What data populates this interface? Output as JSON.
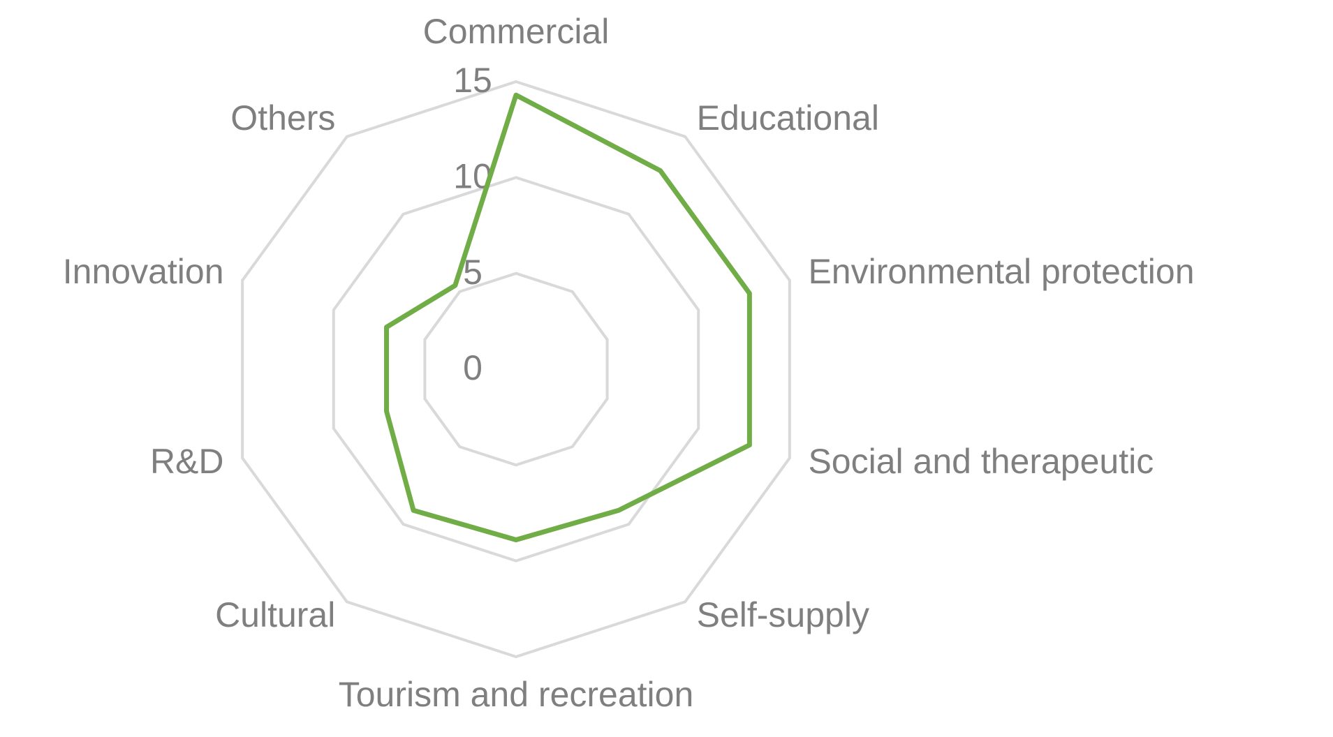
{
  "chart_data": {
    "type": "radar",
    "categories": [
      "Commercial",
      "Educational",
      "Environmental protection",
      "Social and therapeutic",
      "Self-supply",
      "Tourism and recreation",
      "Cultural",
      "R&D",
      "Innovation",
      "Others"
    ],
    "values": [
      14.3,
      12.8,
      12.8,
      12.8,
      9.1,
      8.9,
      9.1,
      7.1,
      7.1,
      5.4
    ],
    "color": "#70ad47",
    "ylim": [
      0,
      15
    ],
    "yticks": [
      0,
      5,
      10,
      15
    ],
    "grid": true
  }
}
